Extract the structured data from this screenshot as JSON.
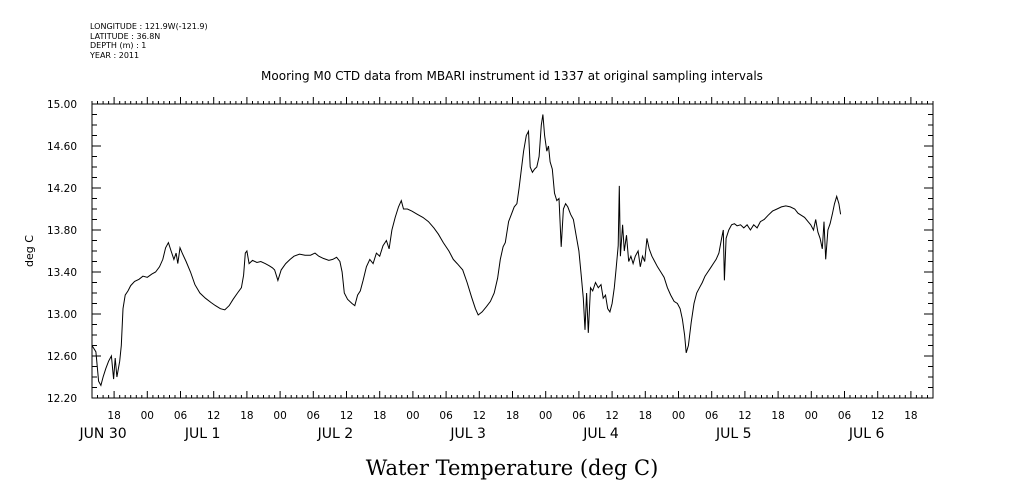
{
  "header": {
    "longitude": "LONGITUDE : 121.9W(-121.9)",
    "latitude": "LATITUDE : 36.8N",
    "depth": "DEPTH (m) : 1",
    "year": "YEAR : 2011"
  },
  "chart_data": {
    "type": "line",
    "title": "Mooring M0 CTD data from MBARI instrument id 1337 at original sampling intervals",
    "xlabel": "Water Temperature (deg C)",
    "ylabel": "deg C",
    "ylim": [
      12.2,
      15.0
    ],
    "yticks": [
      "12.20",
      "12.60",
      "13.00",
      "13.40",
      "13.80",
      "14.20",
      "14.60",
      "15.00"
    ],
    "xlim_hours": [
      -10,
      142
    ],
    "hour_tick_labels": [
      {
        "h": -6,
        "label": "18"
      },
      {
        "h": 0,
        "label": "00"
      },
      {
        "h": 6,
        "label": "06"
      },
      {
        "h": 12,
        "label": "12"
      },
      {
        "h": 18,
        "label": "18"
      },
      {
        "h": 24,
        "label": "00"
      },
      {
        "h": 30,
        "label": "06"
      },
      {
        "h": 36,
        "label": "12"
      },
      {
        "h": 42,
        "label": "18"
      },
      {
        "h": 48,
        "label": "00"
      },
      {
        "h": 54,
        "label": "06"
      },
      {
        "h": 60,
        "label": "12"
      },
      {
        "h": 66,
        "label": "18"
      },
      {
        "h": 72,
        "label": "00"
      },
      {
        "h": 78,
        "label": "06"
      },
      {
        "h": 84,
        "label": "12"
      },
      {
        "h": 90,
        "label": "18"
      },
      {
        "h": 96,
        "label": "00"
      },
      {
        "h": 102,
        "label": "06"
      },
      {
        "h": 108,
        "label": "12"
      },
      {
        "h": 114,
        "label": "18"
      },
      {
        "h": 120,
        "label": "00"
      },
      {
        "h": 126,
        "label": "06"
      },
      {
        "h": 132,
        "label": "12"
      },
      {
        "h": 138,
        "label": "18"
      }
    ],
    "date_labels": [
      {
        "h": -8,
        "label": "JUN 30"
      },
      {
        "h": 10,
        "label": "JUL  1"
      },
      {
        "h": 34,
        "label": "JUL  2"
      },
      {
        "h": 58,
        "label": "JUL  3"
      },
      {
        "h": 82,
        "label": "JUL  4"
      },
      {
        "h": 106,
        "label": "JUL  5"
      },
      {
        "h": 130,
        "label": "JUL  6"
      }
    ],
    "series": [
      {
        "points": [
          [
            -10,
            12.7
          ],
          [
            -9.3,
            12.64
          ],
          [
            -8.8,
            12.36
          ],
          [
            -8.4,
            12.32
          ],
          [
            -8,
            12.4
          ],
          [
            -7.5,
            12.48
          ],
          [
            -7,
            12.55
          ],
          [
            -6.5,
            12.6
          ],
          [
            -6.1,
            12.38
          ],
          [
            -5.8,
            12.58
          ],
          [
            -5.5,
            12.4
          ],
          [
            -5,
            12.55
          ],
          [
            -4.7,
            12.7
          ],
          [
            -4.4,
            13.05
          ],
          [
            -4,
            13.18
          ],
          [
            -3.5,
            13.22
          ],
          [
            -3,
            13.27
          ],
          [
            -2.3,
            13.31
          ],
          [
            -1.5,
            13.33
          ],
          [
            -0.8,
            13.36
          ],
          [
            0,
            13.35
          ],
          [
            0.8,
            13.38
          ],
          [
            1.5,
            13.4
          ],
          [
            2.2,
            13.45
          ],
          [
            2.8,
            13.52
          ],
          [
            3.3,
            13.63
          ],
          [
            3.8,
            13.68
          ],
          [
            4.3,
            13.6
          ],
          [
            4.8,
            13.52
          ],
          [
            5.2,
            13.58
          ],
          [
            5.5,
            13.48
          ],
          [
            5.9,
            13.63
          ],
          [
            6.3,
            13.58
          ],
          [
            7,
            13.5
          ],
          [
            7.8,
            13.4
          ],
          [
            8.6,
            13.28
          ],
          [
            9.5,
            13.2
          ],
          [
            10.5,
            13.15
          ],
          [
            11.5,
            13.11
          ],
          [
            12.3,
            13.08
          ],
          [
            13.2,
            13.05
          ],
          [
            14,
            13.04
          ],
          [
            14.8,
            13.08
          ],
          [
            15.5,
            13.14
          ],
          [
            16.3,
            13.2
          ],
          [
            17,
            13.25
          ],
          [
            17.4,
            13.37
          ],
          [
            17.7,
            13.58
          ],
          [
            18,
            13.6
          ],
          [
            18.4,
            13.48
          ],
          [
            19,
            13.51
          ],
          [
            19.8,
            13.49
          ],
          [
            20.5,
            13.5
          ],
          [
            21.3,
            13.48
          ],
          [
            22,
            13.46
          ],
          [
            22.6,
            13.44
          ],
          [
            23,
            13.42
          ],
          [
            23.6,
            13.32
          ],
          [
            24.2,
            13.42
          ],
          [
            25,
            13.48
          ],
          [
            25.8,
            13.52
          ],
          [
            26.5,
            13.55
          ],
          [
            27.5,
            13.57
          ],
          [
            28.5,
            13.56
          ],
          [
            29.5,
            13.56
          ],
          [
            30.3,
            13.58
          ],
          [
            31,
            13.55
          ],
          [
            31.8,
            13.53
          ],
          [
            32.8,
            13.51
          ],
          [
            33.5,
            13.52
          ],
          [
            34.2,
            13.54
          ],
          [
            34.8,
            13.5
          ],
          [
            35.2,
            13.4
          ],
          [
            35.6,
            13.2
          ],
          [
            36.2,
            13.14
          ],
          [
            37,
            13.1
          ],
          [
            37.5,
            13.08
          ],
          [
            38,
            13.18
          ],
          [
            38.5,
            13.22
          ],
          [
            39,
            13.32
          ],
          [
            39.6,
            13.45
          ],
          [
            40.2,
            13.52
          ],
          [
            40.8,
            13.48
          ],
          [
            41.4,
            13.58
          ],
          [
            42,
            13.55
          ],
          [
            42.6,
            13.65
          ],
          [
            43.2,
            13.7
          ],
          [
            43.7,
            13.62
          ],
          [
            44.2,
            13.8
          ],
          [
            44.8,
            13.92
          ],
          [
            45.4,
            14.02
          ],
          [
            45.9,
            14.08
          ],
          [
            46.3,
            14.0
          ],
          [
            47,
            14.0
          ],
          [
            47.8,
            13.98
          ],
          [
            48.8,
            13.95
          ],
          [
            49.8,
            13.92
          ],
          [
            50.8,
            13.88
          ],
          [
            51.8,
            13.82
          ],
          [
            52.6,
            13.76
          ],
          [
            53.5,
            13.68
          ],
          [
            54.5,
            13.6
          ],
          [
            55.3,
            13.52
          ],
          [
            56,
            13.48
          ],
          [
            57,
            13.42
          ],
          [
            57.8,
            13.3
          ],
          [
            58.6,
            13.16
          ],
          [
            59.3,
            13.05
          ],
          [
            59.8,
            12.99
          ],
          [
            60.5,
            13.02
          ],
          [
            61.3,
            13.07
          ],
          [
            62,
            13.12
          ],
          [
            62.7,
            13.2
          ],
          [
            63.3,
            13.34
          ],
          [
            63.8,
            13.52
          ],
          [
            64.3,
            13.64
          ],
          [
            64.7,
            13.68
          ],
          [
            65.3,
            13.88
          ],
          [
            65.8,
            13.95
          ],
          [
            66.3,
            14.02
          ],
          [
            66.8,
            14.05
          ],
          [
            67.2,
            14.2
          ],
          [
            67.6,
            14.38
          ],
          [
            68,
            14.55
          ],
          [
            68.5,
            14.7
          ],
          [
            68.9,
            14.74
          ],
          [
            69.2,
            14.4
          ],
          [
            69.6,
            14.35
          ],
          [
            70,
            14.38
          ],
          [
            70.4,
            14.4
          ],
          [
            70.8,
            14.5
          ],
          [
            71.2,
            14.8
          ],
          [
            71.5,
            14.9
          ],
          [
            71.8,
            14.7
          ],
          [
            72.2,
            14.55
          ],
          [
            72.5,
            14.6
          ],
          [
            72.8,
            14.45
          ],
          [
            73.2,
            14.38
          ],
          [
            73.6,
            14.15
          ],
          [
            74,
            14.08
          ],
          [
            74.4,
            14.1
          ],
          [
            74.8,
            13.64
          ],
          [
            75.2,
            14.0
          ],
          [
            75.6,
            14.05
          ],
          [
            76,
            14.02
          ],
          [
            76.5,
            13.95
          ],
          [
            77,
            13.9
          ],
          [
            77.5,
            13.75
          ],
          [
            78,
            13.6
          ],
          [
            78.4,
            13.38
          ],
          [
            78.8,
            13.15
          ],
          [
            79.1,
            12.85
          ],
          [
            79.4,
            13.2
          ],
          [
            79.7,
            12.82
          ],
          [
            80.1,
            13.25
          ],
          [
            80.5,
            13.22
          ],
          [
            81,
            13.3
          ],
          [
            81.5,
            13.25
          ],
          [
            82,
            13.28
          ],
          [
            82.4,
            13.15
          ],
          [
            82.8,
            13.18
          ],
          [
            83.2,
            13.05
          ],
          [
            83.6,
            13.02
          ],
          [
            84,
            13.1
          ],
          [
            84.4,
            13.25
          ],
          [
            84.7,
            13.42
          ],
          [
            85.1,
            13.65
          ],
          [
            85.3,
            14.22
          ],
          [
            85.5,
            13.55
          ],
          [
            85.9,
            13.85
          ],
          [
            86.2,
            13.6
          ],
          [
            86.6,
            13.75
          ],
          [
            87,
            13.5
          ],
          [
            87.4,
            13.55
          ],
          [
            87.8,
            13.48
          ],
          [
            88.2,
            13.55
          ],
          [
            88.7,
            13.6
          ],
          [
            89.1,
            13.45
          ],
          [
            89.5,
            13.55
          ],
          [
            89.9,
            13.5
          ],
          [
            90.3,
            13.72
          ],
          [
            90.7,
            13.62
          ],
          [
            91.2,
            13.55
          ],
          [
            91.7,
            13.5
          ],
          [
            92.2,
            13.45
          ],
          [
            92.8,
            13.4
          ],
          [
            93.4,
            13.35
          ],
          [
            94,
            13.25
          ],
          [
            94.6,
            13.18
          ],
          [
            95.2,
            13.12
          ],
          [
            95.8,
            13.1
          ],
          [
            96.3,
            13.05
          ],
          [
            96.7,
            12.95
          ],
          [
            97.1,
            12.8
          ],
          [
            97.4,
            12.63
          ],
          [
            97.8,
            12.7
          ],
          [
            98.3,
            12.92
          ],
          [
            98.8,
            13.1
          ],
          [
            99.3,
            13.2
          ],
          [
            99.8,
            13.25
          ],
          [
            100.3,
            13.3
          ],
          [
            100.8,
            13.36
          ],
          [
            101.3,
            13.4
          ],
          [
            101.8,
            13.44
          ],
          [
            102.3,
            13.48
          ],
          [
            102.8,
            13.52
          ],
          [
            103.3,
            13.58
          ],
          [
            103.8,
            13.72
          ],
          [
            104.1,
            13.8
          ],
          [
            104.3,
            13.32
          ],
          [
            104.6,
            13.72
          ],
          [
            105.1,
            13.8
          ],
          [
            105.6,
            13.85
          ],
          [
            106.1,
            13.86
          ],
          [
            106.6,
            13.84
          ],
          [
            107.2,
            13.85
          ],
          [
            107.8,
            13.82
          ],
          [
            108.4,
            13.85
          ],
          [
            109,
            13.8
          ],
          [
            109.6,
            13.85
          ],
          [
            110.2,
            13.82
          ],
          [
            110.8,
            13.88
          ],
          [
            111.5,
            13.9
          ],
          [
            112.2,
            13.94
          ],
          [
            113,
            13.98
          ],
          [
            113.8,
            14.0
          ],
          [
            114.6,
            14.02
          ],
          [
            115.4,
            14.03
          ],
          [
            116.2,
            14.02
          ],
          [
            117,
            14.0
          ],
          [
            117.6,
            13.96
          ],
          [
            118.2,
            13.94
          ],
          [
            118.8,
            13.92
          ],
          [
            119.4,
            13.88
          ],
          [
            119.9,
            13.85
          ],
          [
            120.4,
            13.8
          ],
          [
            120.8,
            13.9
          ],
          [
            121.2,
            13.78
          ],
          [
            121.6,
            13.72
          ],
          [
            122,
            13.62
          ],
          [
            122.3,
            13.88
          ],
          [
            122.6,
            13.52
          ],
          [
            123,
            13.8
          ],
          [
            123.4,
            13.86
          ],
          [
            123.8,
            13.95
          ],
          [
            124.2,
            14.05
          ],
          [
            124.6,
            14.12
          ],
          [
            125,
            14.05
          ],
          [
            125.3,
            13.95
          ]
        ]
      }
    ]
  }
}
